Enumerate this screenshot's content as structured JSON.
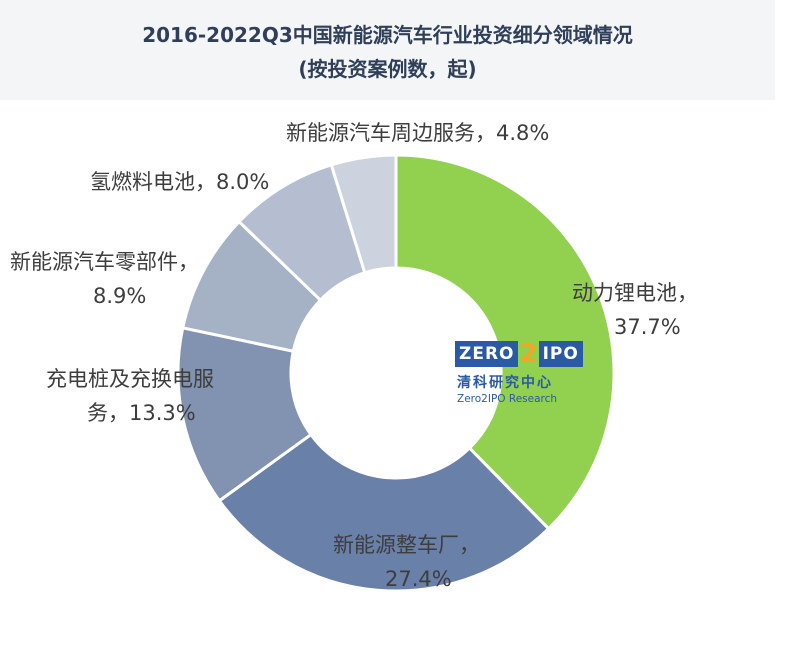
{
  "title_line1": "2016-2022Q3中国新能源汽车行业投资细分领域情况",
  "title_line2": "(按投资案例数，起)",
  "watermark": {
    "logo_left": "ZERO",
    "logo_mid": "2",
    "logo_right": "IPO",
    "cn": "清科研究中心",
    "en": "Zero2IPO Research"
  },
  "labels": [
    {
      "line1": "动力锂电池，",
      "line2": "37.7%"
    },
    {
      "line1": "新能源整车厂，",
      "line2": "27.4%"
    },
    {
      "line1": "充电桩及充换电服",
      "line2": "务，13.3%"
    },
    {
      "line1": "新能源汽车零部件，",
      "line2": "8.9%"
    },
    {
      "line1": "氢燃料电池，8.0%"
    },
    {
      "line1": "新能源汽车周边服务，4.8%"
    }
  ],
  "chart_data": {
    "type": "pie",
    "style": "donut",
    "title": "2016-2022Q3中国新能源汽车行业投资细分领域情况 (按投资案例数，起)",
    "unit": "%",
    "categories": [
      "动力锂电池",
      "新能源整车厂",
      "充电桩及充换电服务",
      "新能源汽车零部件",
      "氢燃料电池",
      "新能源汽车周边服务"
    ],
    "values": [
      37.7,
      27.4,
      13.3,
      8.9,
      8.0,
      4.8
    ],
    "colors": [
      "#92d050",
      "#6980a9",
      "#8193b0",
      "#a5b2c6",
      "#b4bed0",
      "#cdd3de"
    ]
  }
}
